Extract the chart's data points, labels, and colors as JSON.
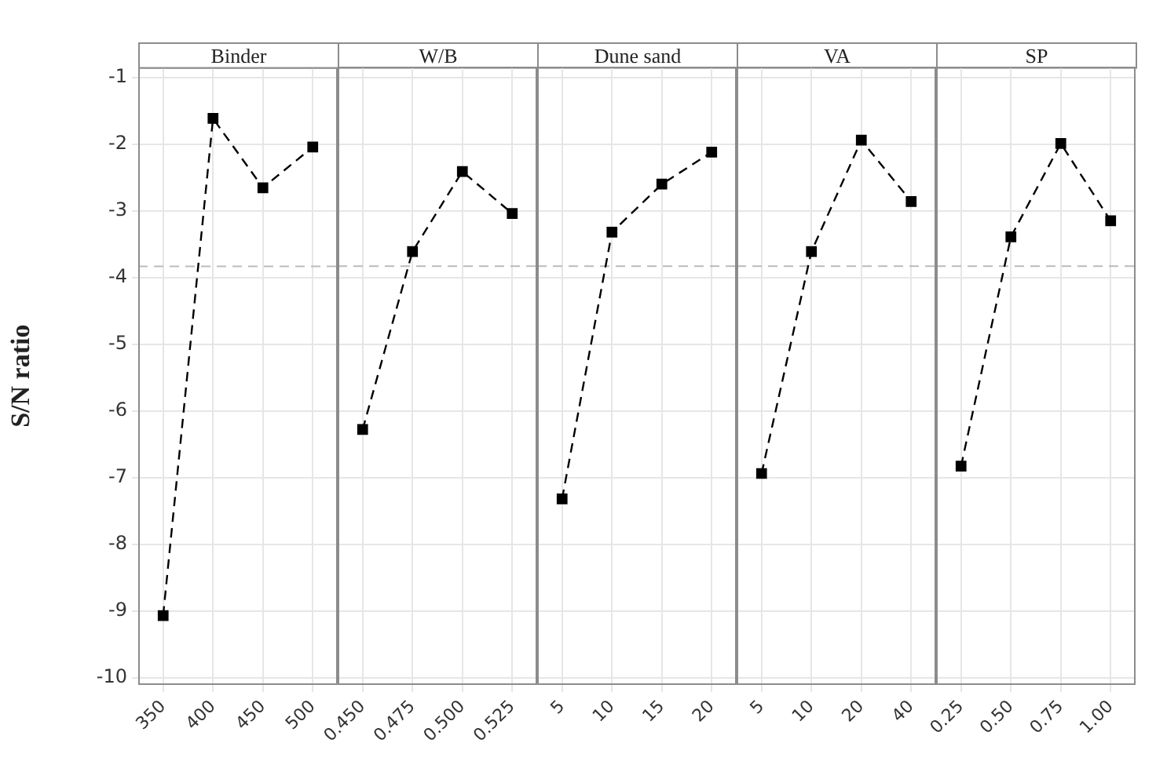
{
  "chart_data": [
    {
      "type": "line",
      "title": "Binder",
      "ylabel": "S/N ratio",
      "categories": [
        "350",
        "400",
        "450",
        "500"
      ],
      "series": [
        {
          "color": "#000000",
          "values": [
            -9.07,
            -1.61,
            -2.65,
            -2.04
          ]
        }
      ],
      "ylim": [
        -10.1,
        -0.85
      ],
      "yticks": [
        -10,
        -9,
        -8,
        -7,
        -6,
        -5,
        -4,
        -3,
        -2,
        -1
      ],
      "ref_lines": [
        {
          "axis": "y",
          "value": -3.83,
          "color": "#bbbbbb",
          "line_style": "dashed"
        }
      ],
      "grid": true,
      "marker": "square",
      "line_style": "dashed"
    },
    {
      "type": "line",
      "title": "W/B",
      "categories": [
        "0.450",
        "0.475",
        "0.500",
        "0.525"
      ],
      "series": [
        {
          "color": "#000000",
          "values": [
            -6.28,
            -3.61,
            -2.41,
            -3.04
          ]
        }
      ],
      "ylim": [
        -10.1,
        -0.85
      ],
      "yticks": [
        -10,
        -9,
        -8,
        -7,
        -6,
        -5,
        -4,
        -3,
        -2,
        -1
      ],
      "tick_labels": "x",
      "ref_lines": [
        {
          "axis": "y",
          "value": -3.83,
          "color": "#bbbbbb",
          "line_style": "dashed"
        }
      ],
      "grid": true,
      "marker": "square",
      "line_style": "dashed"
    },
    {
      "type": "line",
      "title": "Dune sand",
      "categories": [
        "5",
        "10",
        "15",
        "20"
      ],
      "series": [
        {
          "color": "#000000",
          "values": [
            -7.32,
            -3.32,
            -2.6,
            -2.12
          ]
        }
      ],
      "ylim": [
        -10.1,
        -0.85
      ],
      "yticks": [
        -10,
        -9,
        -8,
        -7,
        -6,
        -5,
        -4,
        -3,
        -2,
        -1
      ],
      "tick_labels": "x",
      "ref_lines": [
        {
          "axis": "y",
          "value": -3.83,
          "color": "#bbbbbb",
          "line_style": "dashed"
        }
      ],
      "grid": true,
      "marker": "square",
      "line_style": "dashed"
    },
    {
      "type": "line",
      "title": "VA",
      "categories": [
        "5",
        "10",
        "20",
        "40"
      ],
      "series": [
        {
          "color": "#000000",
          "values": [
            -6.94,
            -3.61,
            -1.94,
            -2.86
          ]
        }
      ],
      "ylim": [
        -10.1,
        -0.85
      ],
      "yticks": [
        -10,
        -9,
        -8,
        -7,
        -6,
        -5,
        -4,
        -3,
        -2,
        -1
      ],
      "tick_labels": "x",
      "ref_lines": [
        {
          "axis": "y",
          "value": -3.83,
          "color": "#bbbbbb",
          "line_style": "dashed"
        }
      ],
      "grid": true,
      "marker": "square",
      "line_style": "dashed"
    },
    {
      "type": "line",
      "title": "SP",
      "categories": [
        "0.25",
        "0.50",
        "0.75",
        "1.00"
      ],
      "series": [
        {
          "color": "#000000",
          "values": [
            -6.83,
            -3.39,
            -1.99,
            -3.15
          ]
        }
      ],
      "ylim": [
        -10.1,
        -0.85
      ],
      "yticks": [
        -10,
        -9,
        -8,
        -7,
        -6,
        -5,
        -4,
        -3,
        -2,
        -1
      ],
      "tick_labels": "x",
      "ref_lines": [
        {
          "axis": "y",
          "value": -3.83,
          "color": "#bbbbbb",
          "line_style": "dashed"
        }
      ],
      "grid": true,
      "marker": "square",
      "line_style": "dashed"
    }
  ]
}
